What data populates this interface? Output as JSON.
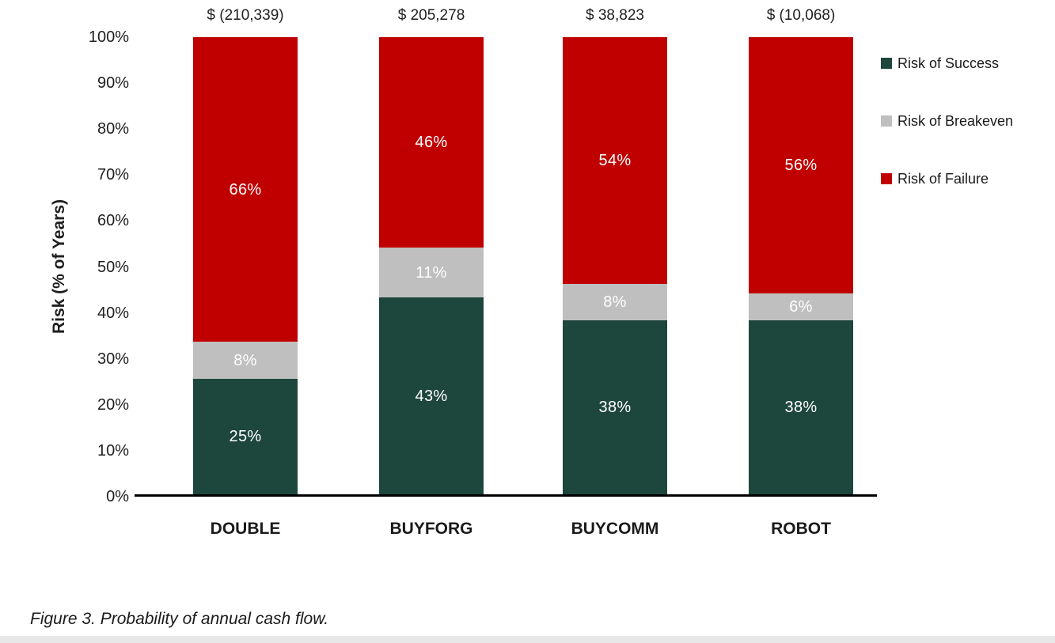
{
  "chart_data": {
    "type": "bar",
    "stacked": true,
    "title": "",
    "xlabel": "",
    "ylabel": "Risk (% of Years)",
    "ylim": [
      0,
      100
    ],
    "grid": false,
    "legend_position": "right",
    "ytick_labels": [
      "0%",
      "10%",
      "20%",
      "30%",
      "40%",
      "50%",
      "60%",
      "70%",
      "80%",
      "90%",
      "100%"
    ],
    "categories": [
      "DOUBLE",
      "BUYFORG",
      "BUYCOMM",
      "ROBOT"
    ],
    "bar_totals": [
      "$ (210,339)",
      "$ 205,278",
      "$ 38,823",
      "$ (10,068)"
    ],
    "series": [
      {
        "name": "Risk of Success",
        "color": "#1D463C",
        "values": [
          25,
          43,
          38,
          38
        ]
      },
      {
        "name": "Risk of Breakeven",
        "color": "#BFBFBF",
        "values": [
          8,
          11,
          8,
          6
        ]
      },
      {
        "name": "Risk of Failure",
        "color": "#C00000",
        "values": [
          66,
          46,
          54,
          56
        ]
      }
    ],
    "value_suffix": "%"
  },
  "caption": "Figure 3. Probability of annual cash flow.",
  "colors": {
    "axis_line": "#000000",
    "axis_text": "#1f1f1f",
    "segment_label_text": "#ffffff",
    "bottom_strip": "#e8e8e8",
    "background": "#ffffff"
  }
}
